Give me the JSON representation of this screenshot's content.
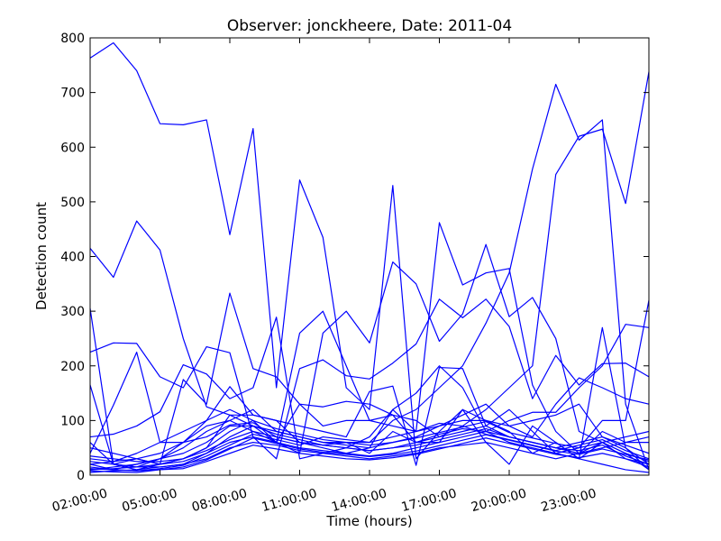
{
  "chart_data": {
    "type": "line",
    "title": "Observer: jonckheere, Date: 2011-04",
    "xlabel": "Time (hours)",
    "ylabel": "Detection count",
    "xlim": [
      2,
      26
    ],
    "ylim": [
      0,
      800
    ],
    "x": [
      2,
      3,
      4,
      5,
      6,
      7,
      8,
      9,
      10,
      11,
      12,
      13,
      14,
      15,
      16,
      17,
      18,
      19,
      20,
      21,
      22,
      23,
      24,
      25,
      26
    ],
    "x_ticks": [
      2,
      5,
      8,
      11,
      14,
      17,
      20,
      23
    ],
    "x_tick_labels": [
      "02:00:00",
      "05:00:00",
      "08:00:00",
      "11:00:00",
      "14:00:00",
      "17:00:00",
      "20:00:00",
      "23:00:00"
    ],
    "y_ticks": [
      0,
      100,
      200,
      300,
      400,
      500,
      600,
      700,
      800
    ],
    "y_tick_labels": [
      "0",
      "100",
      "200",
      "300",
      "400",
      "500",
      "600",
      "700",
      "800"
    ],
    "grid": false,
    "line_color": "#0000ff",
    "series": [
      {
        "values": [
          763,
          791,
          740,
          643,
          641,
          650,
          440,
          634,
          160,
          540,
          435,
          160,
          120,
          530,
          30,
          80,
          120,
          60,
          20,
          90,
          60,
          30,
          270,
          50,
          10
        ]
      },
      {
        "values": [
          415,
          362,
          465,
          412,
          250,
          125,
          110,
          110,
          100,
          60,
          55,
          60,
          40,
          80,
          60,
          60,
          120,
          100,
          80,
          40,
          60,
          30,
          60,
          40,
          10
        ]
      },
      {
        "values": [
          30,
          25,
          40,
          60,
          80,
          100,
          120,
          100,
          60,
          130,
          90,
          100,
          100,
          110,
          60,
          70,
          90,
          120,
          160,
          200,
          550,
          620,
          633,
          497,
          738
        ]
      },
      {
        "values": [
          20,
          10,
          20,
          30,
          40,
          60,
          90,
          90,
          80,
          70,
          60,
          60,
          60,
          100,
          120,
          160,
          200,
          278,
          370,
          560,
          715,
          613,
          650,
          130,
          10
        ]
      },
      {
        "values": [
          60,
          20,
          15,
          30,
          60,
          90,
          100,
          80,
          60,
          40,
          260,
          300,
          242,
          390,
          350,
          245,
          295,
          422,
          290,
          325,
          250,
          80,
          60,
          30,
          20
        ]
      },
      {
        "values": [
          305,
          20,
          30,
          20,
          30,
          50,
          110,
          90,
          60,
          260,
          300,
          200,
          100,
          90,
          80,
          462,
          348,
          370,
          378,
          165,
          80,
          40,
          80,
          60,
          60
        ]
      },
      {
        "values": [
          225,
          242,
          241,
          180,
          160,
          235,
          224,
          70,
          30,
          195,
          211,
          182,
          176,
          205,
          240,
          322,
          288,
          322,
          272,
          140,
          219,
          165,
          204,
          205,
          180
        ]
      },
      {
        "values": [
          165,
          20,
          10,
          20,
          175,
          130,
          333,
          195,
          180,
          130,
          125,
          135,
          130,
          110,
          100,
          70,
          80,
          90,
          70,
          60,
          50,
          40,
          60,
          70,
          80
        ]
      },
      {
        "values": [
          70,
          75,
          90,
          116,
          202,
          185,
          140,
          160,
          289,
          30,
          40,
          50,
          70,
          120,
          80,
          90,
          100,
          100,
          90,
          100,
          110,
          130,
          70,
          50,
          20
        ]
      },
      {
        "values": [
          40,
          128,
          225,
          60,
          60,
          70,
          92,
          96,
          70,
          60,
          50,
          40,
          50,
          120,
          150,
          200,
          160,
          80,
          60,
          50,
          40,
          30,
          20,
          10,
          5
        ]
      },
      {
        "values": [
          20,
          25,
          30,
          40,
          60,
          100,
          162,
          110,
          100,
          90,
          80,
          70,
          153,
          163,
          18,
          197,
          195,
          90,
          120,
          80,
          40,
          50,
          100,
          100,
          320
        ]
      },
      {
        "values": [
          10,
          15,
          20,
          30,
          50,
          80,
          100,
          120,
          80,
          70,
          60,
          55,
          50,
          60,
          70,
          90,
          110,
          130,
          90,
          70,
          130,
          178,
          160,
          140,
          130
        ]
      },
      {
        "values": [
          50,
          40,
          30,
          20,
          25,
          40,
          60,
          70,
          60,
          50,
          45,
          40,
          35,
          40,
          50,
          60,
          70,
          80,
          100,
          115,
          115,
          160,
          200,
          276,
          270
        ]
      },
      {
        "values": [
          5,
          8,
          10,
          15,
          20,
          30,
          50,
          60,
          55,
          45,
          40,
          35,
          30,
          35,
          40,
          50,
          55,
          60,
          50,
          40,
          30,
          40,
          50,
          60,
          70
        ]
      },
      {
        "values": [
          10,
          12,
          15,
          20,
          30,
          45,
          65,
          80,
          70,
          60,
          55,
          50,
          45,
          50,
          60,
          75,
          85,
          80,
          70,
          60,
          50,
          60,
          70,
          55,
          40
        ]
      },
      {
        "values": [
          15,
          10,
          8,
          12,
          18,
          35,
          55,
          75,
          65,
          55,
          70,
          65,
          60,
          70,
          80,
          95,
          90,
          75,
          65,
          55,
          45,
          55,
          65,
          45,
          30
        ]
      },
      {
        "values": [
          8,
          6,
          5,
          10,
          15,
          28,
          48,
          68,
          58,
          48,
          42,
          38,
          34,
          38,
          44,
          54,
          64,
          74,
          64,
          54,
          44,
          38,
          48,
          38,
          28
        ]
      },
      {
        "values": [
          35,
          30,
          25,
          25,
          30,
          50,
          80,
          100,
          85,
          75,
          65,
          60,
          55,
          60,
          68,
          78,
          88,
          98,
          78,
          68,
          58,
          50,
          60,
          40,
          25
        ]
      },
      {
        "values": [
          12,
          10,
          8,
          10,
          12,
          25,
          40,
          55,
          48,
          40,
          35,
          30,
          28,
          32,
          38,
          48,
          58,
          68,
          58,
          48,
          38,
          32,
          40,
          30,
          15
        ]
      },
      {
        "values": [
          25,
          20,
          15,
          15,
          20,
          40,
          70,
          90,
          75,
          65,
          55,
          50,
          45,
          50,
          55,
          65,
          75,
          85,
          70,
          60,
          50,
          45,
          55,
          35,
          20
        ]
      }
    ]
  }
}
